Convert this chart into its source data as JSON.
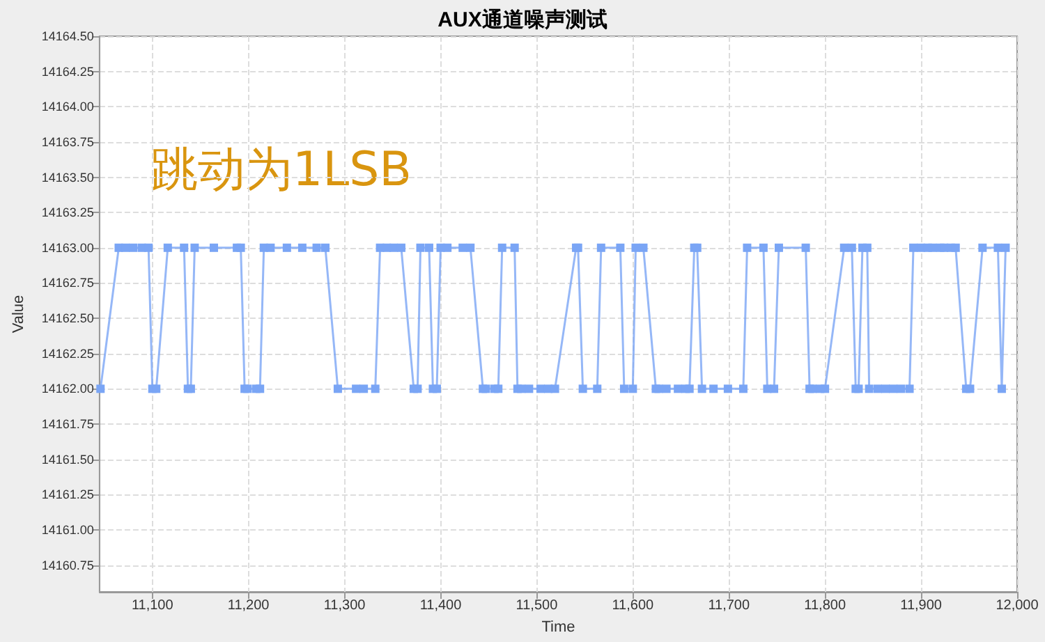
{
  "chart_data": {
    "type": "line",
    "title": "AUX通道噪声测试",
    "xlabel": "Time",
    "ylabel": "Value",
    "annotations": [
      "跳动为1LSB"
    ],
    "series": [
      {
        "color": "#7aa5f5",
        "x": [
          11046,
          11065,
          11072,
          11080,
          11089,
          11096,
          11100,
          11104,
          11116,
          11133,
          11137,
          11140,
          11144,
          11164,
          11188,
          11192,
          11196,
          11199,
          11208,
          11212,
          11216,
          11223,
          11240,
          11256,
          11271,
          11280,
          11293,
          11312,
          11320,
          11332,
          11337,
          11344,
          11351,
          11359,
          11372,
          11376,
          11379,
          11388,
          11392,
          11396,
          11400,
          11407,
          11423,
          11431,
          11444,
          11447,
          11456,
          11460,
          11464,
          11477,
          11480,
          11484,
          11492,
          11504,
          11512,
          11519,
          11541,
          11543,
          11548,
          11563,
          11567,
          11587,
          11591,
          11600,
          11603,
          11611,
          11624,
          11627,
          11635,
          11647,
          11655,
          11659,
          11664,
          11667,
          11672,
          11684,
          11699,
          11715,
          11719,
          11736,
          11740,
          11747,
          11752,
          11780,
          11784,
          11787,
          11795,
          11800,
          11820,
          11828,
          11832,
          11835,
          11839,
          11844,
          11846,
          11855,
          11863,
          11871,
          11879,
          11888,
          11892,
          11900,
          11907,
          11912,
          11920,
          11924,
          11931,
          11936,
          11947,
          11951,
          11964,
          11980,
          11984,
          11988
        ],
        "values": [
          14162,
          14163,
          14163,
          14163,
          14163,
          14163,
          14162,
          14162,
          14163,
          14163,
          14162,
          14162,
          14163,
          14163,
          14163,
          14163,
          14162,
          14162,
          14162,
          14162,
          14163,
          14163,
          14163,
          14163,
          14163,
          14163,
          14162,
          14162,
          14162,
          14162,
          14163,
          14163,
          14163,
          14163,
          14162,
          14162,
          14163,
          14163,
          14162,
          14162,
          14163,
          14163,
          14163,
          14163,
          14162,
          14162,
          14162,
          14162,
          14163,
          14163,
          14162,
          14162,
          14162,
          14162,
          14162,
          14162,
          14163,
          14163,
          14162,
          14162,
          14163,
          14163,
          14162,
          14162,
          14163,
          14163,
          14162,
          14162,
          14162,
          14162,
          14162,
          14162,
          14163,
          14163,
          14162,
          14162,
          14162,
          14162,
          14163,
          14163,
          14162,
          14162,
          14163,
          14163,
          14162,
          14162,
          14162,
          14162,
          14163,
          14163,
          14162,
          14162,
          14163,
          14163,
          14162,
          14162,
          14162,
          14162,
          14162,
          14162,
          14163,
          14163,
          14163,
          14163,
          14163,
          14163,
          14163,
          14163,
          14162,
          14162,
          14163,
          14163,
          14162,
          14163
        ]
      }
    ],
    "xlim": [
      11045,
      12000
    ],
    "xticks": [
      {
        "value": 11100,
        "label": "11,100"
      },
      {
        "value": 11200,
        "label": "11,200"
      },
      {
        "value": 11300,
        "label": "11,300"
      },
      {
        "value": 11400,
        "label": "11,400"
      },
      {
        "value": 11500,
        "label": "11,500"
      },
      {
        "value": 11600,
        "label": "11,600"
      },
      {
        "value": 11700,
        "label": "11,700"
      },
      {
        "value": 11800,
        "label": "11,800"
      },
      {
        "value": 11900,
        "label": "11,900"
      },
      {
        "value": 12000,
        "label": "12,000"
      }
    ],
    "ylim": [
      14160.56,
      14164.5
    ],
    "yticks": [
      14160.75,
      {
        "value": 14161,
        "label": "14161.00"
      },
      14161.25,
      {
        "value": 14161.5,
        "label": "14161.50"
      },
      14161.75,
      {
        "value": 14162,
        "label": "14162.00"
      },
      14162.25,
      {
        "value": 14162.5,
        "label": "14162.50"
      },
      14162.75,
      {
        "value": 14163,
        "label": "14163.00"
      },
      14163.25,
      {
        "value": 14163.5,
        "label": "14163.50"
      },
      14163.75,
      {
        "value": 14164,
        "label": "14164.00"
      },
      14164.25,
      {
        "value": 14164.5,
        "label": "14164.50"
      }
    ],
    "grid": true,
    "marker": "square",
    "line_style": "solid"
  }
}
